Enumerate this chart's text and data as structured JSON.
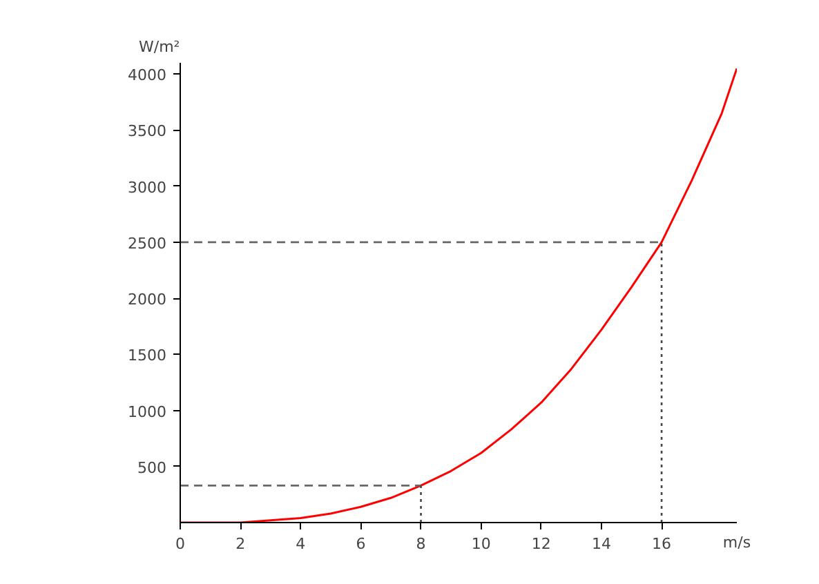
{
  "chart_data": {
    "type": "line",
    "xlabel": "m/s",
    "ylabel": "W/m²",
    "xlim": [
      0,
      18.5
    ],
    "ylim": [
      0,
      4100
    ],
    "xticks": [
      0,
      2,
      4,
      6,
      8,
      10,
      12,
      14,
      16
    ],
    "yticks": [
      500,
      1000,
      1500,
      2000,
      2500,
      3000,
      3500,
      4000
    ],
    "grid": false,
    "marker": "none",
    "series": [
      {
        "color": "#ff0000",
        "line_style": "solid",
        "x": [
          0,
          1,
          2,
          3,
          4,
          5,
          6,
          7,
          8,
          9,
          10,
          11,
          12,
          13,
          14,
          15,
          16,
          17,
          18,
          18.5
        ],
        "values": [
          0,
          0,
          0,
          20,
          40,
          80,
          140,
          220,
          330,
          460,
          620,
          830,
          1070,
          1370,
          1720,
          2100,
          2500,
          3050,
          3650,
          4050
        ]
      },
      {
        "color": "#666666",
        "line_style": "dashed",
        "x": [
          0,
          8
        ],
        "values": [
          330,
          330
        ]
      },
      {
        "color": "#444444",
        "line_style": "dotted",
        "x": [
          8,
          8
        ],
        "values": [
          0,
          330
        ]
      },
      {
        "color": "#666666",
        "line_style": "dashed",
        "x": [
          0,
          16
        ],
        "values": [
          2500,
          2500
        ]
      },
      {
        "color": "#444444",
        "line_style": "dotted",
        "x": [
          16,
          16
        ],
        "values": [
          0,
          2500
        ]
      }
    ]
  }
}
